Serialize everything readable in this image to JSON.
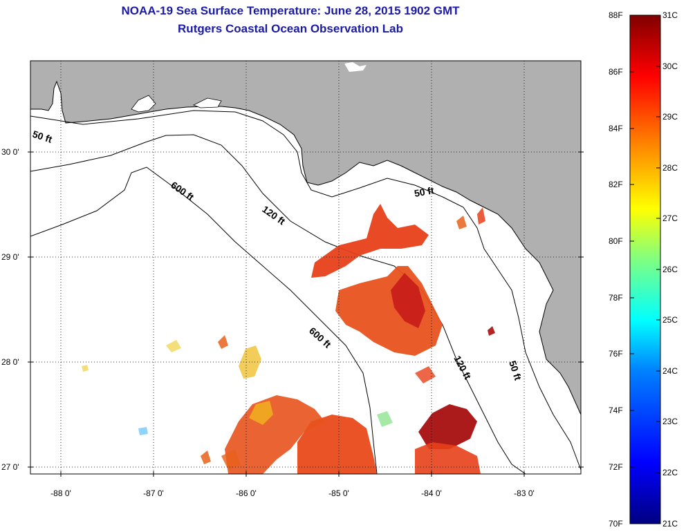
{
  "title": {
    "line1": "NOAA-19 Sea Surface Temperature:  June 28, 2015 1902 GMT",
    "line2": "Rutgers Coastal Ocean Observation Lab"
  },
  "map": {
    "lat_labels": [
      "30 0'",
      "29 0'",
      "28 0'",
      "27 0'"
    ],
    "lon_labels": [
      "-88 0'",
      "-87 0'",
      "-86 0'",
      "-85 0'",
      "-84 0'",
      "-83 0'"
    ],
    "contour_labels": [
      "50 ft",
      "600 ft",
      "120 ft",
      "50 ft",
      "600 ft",
      "120 ft",
      "50 ft"
    ]
  },
  "colorbar": {
    "f_labels": [
      "88F",
      "86F",
      "84F",
      "82F",
      "80F",
      "78F",
      "76F",
      "74F",
      "72F",
      "70F"
    ],
    "c_labels": [
      "31C",
      "30C",
      "29C",
      "28C",
      "27C",
      "26C",
      "25C",
      "24C",
      "23C",
      "22C",
      "21C"
    ],
    "colors": [
      "#800000",
      "#ff0000",
      "#ff8000",
      "#ffff00",
      "#80ff80",
      "#00ffff",
      "#0080ff",
      "#0000ff",
      "#000080"
    ]
  },
  "colors": {
    "land": "#b0b0b0",
    "title": "#1a1aa6",
    "warm": "#e8401a",
    "hot": "#a80f10"
  }
}
